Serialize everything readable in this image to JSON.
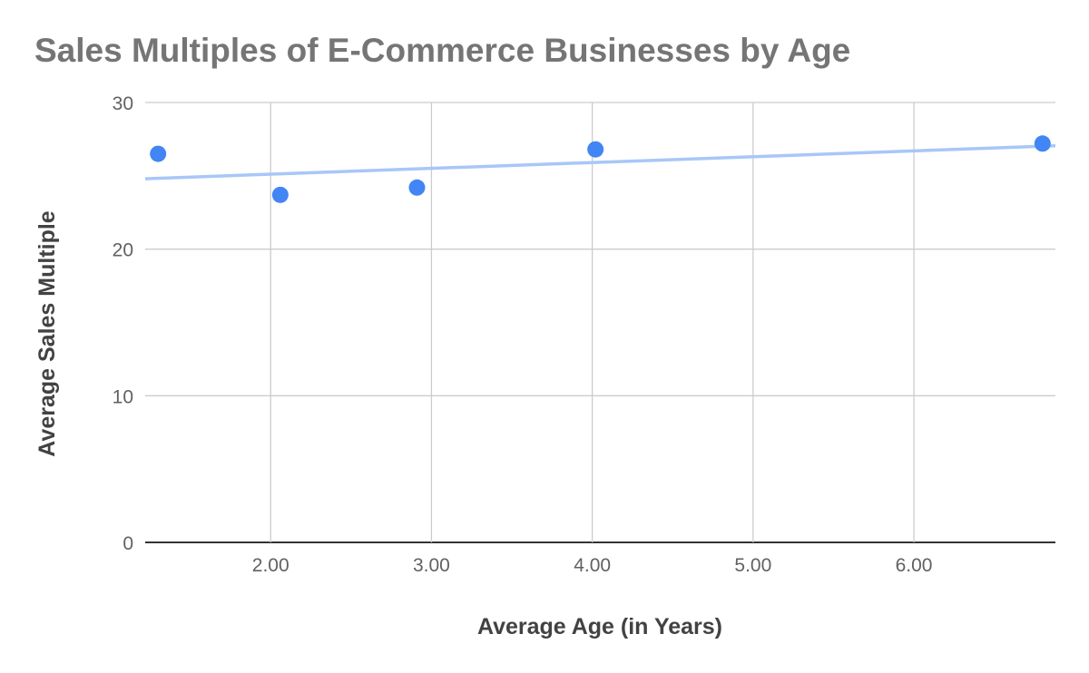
{
  "chart_data": {
    "type": "scatter",
    "title": "Sales Multiples of E-Commerce Businesses by Age",
    "xlabel": "Average Age (in Years)",
    "ylabel": "Average Sales Multiple",
    "xlim": [
      1.22,
      6.88
    ],
    "ylim": [
      0,
      30
    ],
    "x_ticks": [
      2,
      3,
      4,
      5,
      6
    ],
    "x_tick_labels": [
      "2.00",
      "3.00",
      "4.00",
      "5.00",
      "6.00"
    ],
    "y_ticks": [
      0,
      10,
      20,
      30
    ],
    "y_tick_labels": [
      "0",
      "10",
      "20",
      "30"
    ],
    "grid": true,
    "legend": "none",
    "series": [
      {
        "points": [
          {
            "x": 1.3,
            "y": 26.5
          },
          {
            "x": 2.06,
            "y": 23.7
          },
          {
            "x": 2.91,
            "y": 24.2
          },
          {
            "x": 4.02,
            "y": 26.8
          },
          {
            "x": 6.8,
            "y": 27.2
          }
        ],
        "color": "#4285f4"
      }
    ],
    "trendline": {
      "type": "linear",
      "x": [
        1.22,
        6.88
      ],
      "y": [
        24.8,
        27.05
      ],
      "color": "#a8c7f7"
    }
  }
}
